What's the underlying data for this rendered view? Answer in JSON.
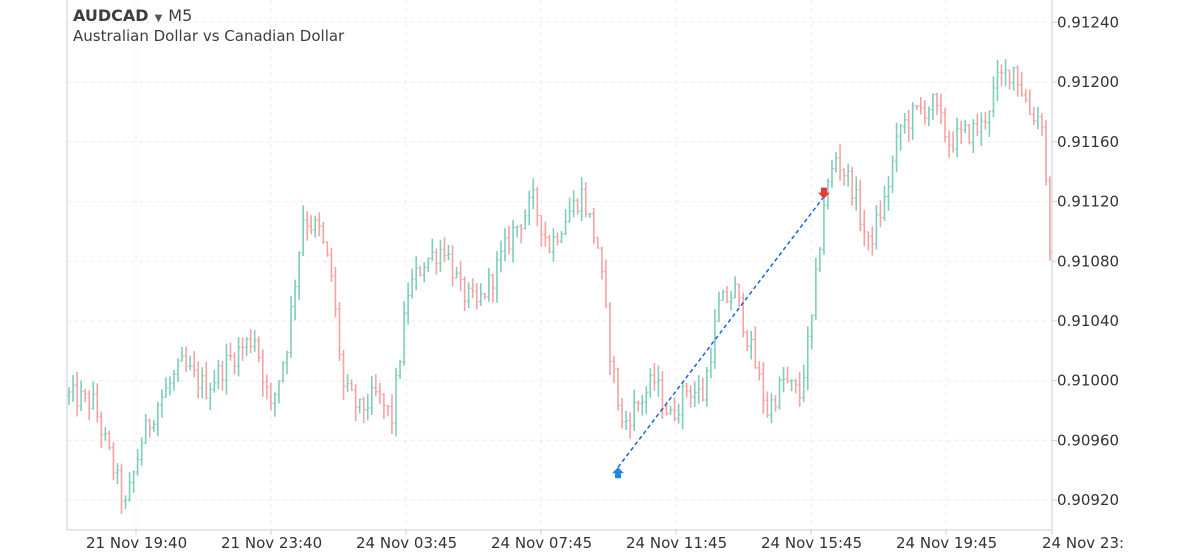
{
  "header": {
    "symbol": "AUDCAD",
    "timeframe": "M5",
    "description": "Australian Dollar vs Canadian Dollar"
  },
  "colors": {
    "up": "#7fcdbb",
    "down": "#f4a3a3",
    "grid": "#ececec",
    "axis": "#cfcfcf",
    "label": "#333333",
    "trend": "#1565d8",
    "buy_arrow": "#1e88e5",
    "sell_arrow": "#e53935"
  },
  "chart_data": {
    "type": "candlestick",
    "ylim": [
      0.909,
      0.91255
    ],
    "y_ticks": [
      "0.91240",
      "0.91200",
      "0.91160",
      "0.91120",
      "0.91080",
      "0.91040",
      "0.91000",
      "0.90960",
      "0.90920"
    ],
    "x_ticks": [
      "21 Nov 19:40",
      "21 Nov 23:40",
      "24 Nov 03:45",
      "24 Nov 07:45",
      "24 Nov 11:45",
      "24 Nov 15:45",
      "24 Nov 19:45",
      "24 Nov 23:"
    ],
    "candle_count": 244,
    "trade": {
      "entry_price": 0.90938,
      "exit_price": 0.91126,
      "entry_candle": 136,
      "exit_candle": 187
    },
    "price_path": [
      [
        0,
        0.9099
      ],
      [
        6,
        0.90985
      ],
      [
        10,
        0.9095
      ],
      [
        14,
        0.90915
      ],
      [
        18,
        0.9096
      ],
      [
        22,
        0.90985
      ],
      [
        28,
        0.9101
      ],
      [
        34,
        0.90995
      ],
      [
        40,
        0.91015
      ],
      [
        46,
        0.9103
      ],
      [
        50,
        0.9098
      ],
      [
        54,
        0.91025
      ],
      [
        58,
        0.9111
      ],
      [
        62,
        0.911
      ],
      [
        65,
        0.9107
      ],
      [
        68,
        0.90995
      ],
      [
        72,
        0.9098
      ],
      [
        76,
        0.9099
      ],
      [
        80,
        0.90975
      ],
      [
        84,
        0.9106
      ],
      [
        88,
        0.9108
      ],
      [
        93,
        0.9109
      ],
      [
        97,
        0.9106
      ],
      [
        101,
        0.9105
      ],
      [
        105,
        0.9107
      ],
      [
        110,
        0.911
      ],
      [
        115,
        0.9112
      ],
      [
        119,
        0.9109
      ],
      [
        123,
        0.9111
      ],
      [
        127,
        0.91125
      ],
      [
        131,
        0.9109
      ],
      [
        134,
        0.9102
      ],
      [
        137,
        0.9097
      ],
      [
        141,
        0.90985
      ],
      [
        145,
        0.91
      ],
      [
        149,
        0.90975
      ],
      [
        153,
        0.90995
      ],
      [
        157,
        0.9099
      ],
      [
        161,
        0.9105
      ],
      [
        165,
        0.9106
      ],
      [
        169,
        0.9102
      ],
      [
        173,
        0.9098
      ],
      [
        177,
        0.91
      ],
      [
        181,
        0.9099
      ],
      [
        184,
        0.9104
      ],
      [
        187,
        0.9112
      ],
      [
        190,
        0.9115
      ],
      [
        194,
        0.9113
      ],
      [
        198,
        0.9109
      ],
      [
        202,
        0.9112
      ],
      [
        206,
        0.9117
      ],
      [
        210,
        0.9118
      ],
      [
        214,
        0.91185
      ],
      [
        218,
        0.9116
      ],
      [
        222,
        0.91165
      ],
      [
        226,
        0.9117
      ],
      [
        230,
        0.912
      ],
      [
        234,
        0.9121
      ],
      [
        238,
        0.9118
      ],
      [
        241,
        0.91175
      ],
      [
        243,
        0.9109
      ]
    ]
  }
}
